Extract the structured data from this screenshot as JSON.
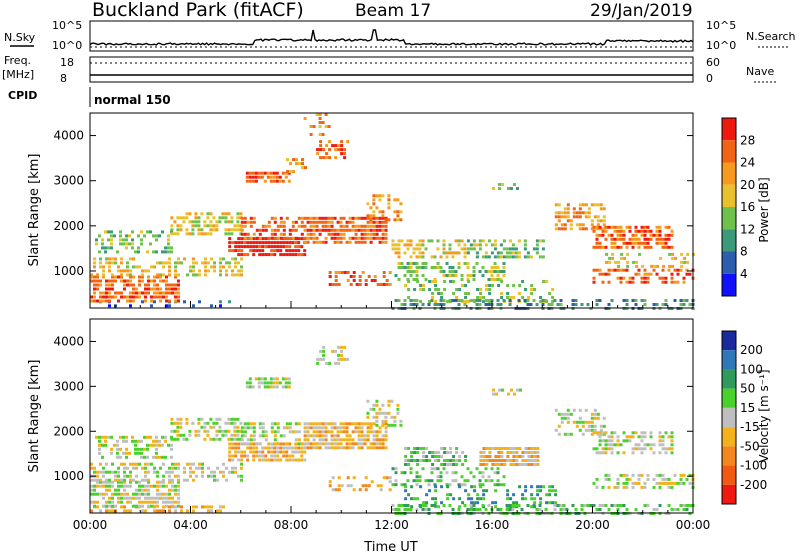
{
  "header": {
    "site": "Buckland Park (fitACF)",
    "beam": "Beam 17",
    "date": "29/Jan/2019"
  },
  "strips": {
    "nsky_label": "N.Sky",
    "nsky_ticks": [
      "10^5",
      "10^0"
    ],
    "nsearch_label": "N.Search",
    "nsearch_ticks": [
      "10^5",
      "10^0"
    ],
    "freq_label": "Freq.",
    "freq_unit": "[MHz]",
    "freq_ticks": [
      "18",
      "8"
    ],
    "nave_label": "Nave",
    "nave_ticks": [
      "60",
      "0"
    ],
    "cpid_label": "CPID",
    "cpid_value": "normal 150"
  },
  "chart_data": [
    {
      "type": "heatmap",
      "panel": "power",
      "ylabel": "Slant Range [km]",
      "xlabel": "",
      "xlim": [
        0,
        24
      ],
      "ylim": [
        180,
        4500
      ],
      "yticks": [
        "1000",
        "2000",
        "3000",
        "4000"
      ],
      "colorbar_label": "Power [dB]",
      "colorbar_ticks": [
        "4",
        "8",
        "12",
        "16",
        "20",
        "24",
        "28"
      ],
      "colorbar_range": [
        0,
        32
      ],
      "colors": [
        "#1010ff",
        "#2b5fae",
        "#3c9a7a",
        "#6ec14d",
        "#e8c12c",
        "#f59a1e",
        "#f26414",
        "#ee1a10"
      ],
      "regions": [
        {
          "t0": 0.0,
          "t1": 5.5,
          "r0": 180,
          "r1": 350,
          "lvl": 1,
          "dens": 0.25
        },
        {
          "t0": 0.0,
          "t1": 3.5,
          "r0": 350,
          "r1": 900,
          "lvl": 6,
          "dens": 0.7
        },
        {
          "t0": 0.0,
          "t1": 6.0,
          "r0": 900,
          "r1": 1300,
          "lvl": 4,
          "dens": 0.45
        },
        {
          "t0": 0.2,
          "t1": 3.2,
          "r0": 1400,
          "r1": 1900,
          "lvl": 3,
          "dens": 0.45
        },
        {
          "t0": 3.2,
          "t1": 6.0,
          "r0": 1800,
          "r1": 2300,
          "lvl": 4,
          "dens": 0.55
        },
        {
          "t0": 5.5,
          "t1": 8.5,
          "r0": 1350,
          "r1": 1750,
          "lvl": 7,
          "dens": 0.85
        },
        {
          "t0": 6.0,
          "t1": 8.5,
          "r0": 1700,
          "r1": 2200,
          "lvl": 6,
          "dens": 0.55
        },
        {
          "t0": 8.5,
          "t1": 11.8,
          "r0": 1600,
          "r1": 2200,
          "lvl": 6,
          "dens": 0.8
        },
        {
          "t0": 6.2,
          "t1": 7.9,
          "r0": 2950,
          "r1": 3200,
          "lvl": 6,
          "dens": 0.8
        },
        {
          "t0": 7.8,
          "t1": 8.6,
          "r0": 3150,
          "r1": 3500,
          "lvl": 5,
          "dens": 0.5
        },
        {
          "t0": 9.0,
          "t1": 10.2,
          "r0": 3500,
          "r1": 3900,
          "lvl": 6,
          "dens": 0.5
        },
        {
          "t0": 8.5,
          "t1": 9.5,
          "r0": 4000,
          "r1": 4500,
          "lvl": 5,
          "dens": 0.3
        },
        {
          "t0": 11.0,
          "t1": 12.4,
          "r0": 2100,
          "r1": 2700,
          "lvl": 5,
          "dens": 0.45
        },
        {
          "t0": 9.5,
          "t1": 12.0,
          "r0": 700,
          "r1": 1000,
          "lvl": 6,
          "dens": 0.45
        },
        {
          "t0": 12.0,
          "t1": 15.0,
          "r0": 1300,
          "r1": 1700,
          "lvl": 4,
          "dens": 0.55
        },
        {
          "t0": 12.0,
          "t1": 16.5,
          "r0": 800,
          "r1": 1200,
          "lvl": 3,
          "dens": 0.45
        },
        {
          "t0": 15.0,
          "t1": 18.0,
          "r0": 1300,
          "r1": 1700,
          "lvl": 3,
          "dens": 0.55
        },
        {
          "t0": 12.5,
          "t1": 18.5,
          "r0": 350,
          "r1": 800,
          "lvl": 3,
          "dens": 0.3
        },
        {
          "t0": 12.0,
          "t1": 24.0,
          "r0": 180,
          "r1": 380,
          "lvl": 2,
          "dens": 0.4
        },
        {
          "t0": 18.5,
          "t1": 20.5,
          "r0": 1900,
          "r1": 2500,
          "lvl": 5,
          "dens": 0.55
        },
        {
          "t0": 20.0,
          "t1": 23.2,
          "r0": 1500,
          "r1": 2000,
          "lvl": 6,
          "dens": 0.65
        },
        {
          "t0": 20.0,
          "t1": 24.0,
          "r0": 700,
          "r1": 1050,
          "lvl": 6,
          "dens": 0.5
        },
        {
          "t0": 20.5,
          "t1": 24.0,
          "r0": 1050,
          "r1": 1400,
          "lvl": 4,
          "dens": 0.35
        },
        {
          "t0": 16.0,
          "t1": 17.2,
          "r0": 2800,
          "r1": 2950,
          "lvl": 3,
          "dens": 0.35
        }
      ]
    },
    {
      "type": "heatmap",
      "panel": "velocity",
      "ylabel": "Slant Range [km]",
      "xlabel": "Time UT",
      "xlim": [
        0,
        24
      ],
      "ylim": [
        180,
        4500
      ],
      "xticks": [
        "00:00",
        "04:00",
        "08:00",
        "12:00",
        "16:00",
        "20:00",
        "00:00"
      ],
      "yticks": [
        "1000",
        "2000",
        "3000",
        "4000"
      ],
      "colorbar_label": "Velocity [m s⁻¹]",
      "colorbar_ticks": [
        "200",
        "100",
        "50",
        "15",
        "-15",
        "-50",
        "-100",
        "-200"
      ],
      "colors": [
        "#1a2a9e",
        "#2f78b8",
        "#2f9a5c",
        "#4bd12b",
        "#bfbfbf",
        "#f3b21a",
        "#f3861c",
        "#f25a14",
        "#ee1a10"
      ],
      "regions": [
        {
          "t0": 0.0,
          "t1": 5.5,
          "r0": 180,
          "r1": 350,
          "lvl": 5,
          "dens": 0.45
        },
        {
          "t0": 0.0,
          "t1": 3.5,
          "r0": 350,
          "r1": 900,
          "lvl": 4,
          "dens": 0.7
        },
        {
          "t0": 0.0,
          "t1": 6.0,
          "r0": 900,
          "r1": 1300,
          "lvl": 4,
          "dens": 0.5
        },
        {
          "t0": 0.2,
          "t1": 3.2,
          "r0": 1400,
          "r1": 1900,
          "lvl": 4,
          "dens": 0.45
        },
        {
          "t0": 3.2,
          "t1": 6.0,
          "r0": 1800,
          "r1": 2300,
          "lvl": 4,
          "dens": 0.55
        },
        {
          "t0": 5.5,
          "t1": 8.5,
          "r0": 1350,
          "r1": 1750,
          "lvl": 5,
          "dens": 0.8
        },
        {
          "t0": 6.0,
          "t1": 8.5,
          "r0": 1700,
          "r1": 2200,
          "lvl": 4,
          "dens": 0.5
        },
        {
          "t0": 8.5,
          "t1": 11.8,
          "r0": 1600,
          "r1": 2200,
          "lvl": 5,
          "dens": 0.8
        },
        {
          "t0": 6.2,
          "t1": 7.9,
          "r0": 2950,
          "r1": 3200,
          "lvl": 4,
          "dens": 0.7
        },
        {
          "t0": 9.0,
          "t1": 10.2,
          "r0": 3500,
          "r1": 3900,
          "lvl": 4,
          "dens": 0.45
        },
        {
          "t0": 11.0,
          "t1": 12.4,
          "r0": 2100,
          "r1": 2700,
          "lvl": 4,
          "dens": 0.45
        },
        {
          "t0": 9.5,
          "t1": 12.0,
          "r0": 700,
          "r1": 1000,
          "lvl": 5,
          "dens": 0.45
        },
        {
          "t0": 12.5,
          "t1": 15.0,
          "r0": 1250,
          "r1": 1650,
          "lvl": 3,
          "dens": 0.65
        },
        {
          "t0": 15.5,
          "t1": 17.8,
          "r0": 1250,
          "r1": 1650,
          "lvl": 5,
          "dens": 0.85
        },
        {
          "t0": 12.0,
          "t1": 16.5,
          "r0": 800,
          "r1": 1200,
          "lvl": 3,
          "dens": 0.45
        },
        {
          "t0": 12.5,
          "t1": 18.5,
          "r0": 350,
          "r1": 800,
          "lvl": 2,
          "dens": 0.3
        },
        {
          "t0": 12.0,
          "t1": 24.0,
          "r0": 180,
          "r1": 380,
          "lvl": 3,
          "dens": 0.5
        },
        {
          "t0": 18.5,
          "t1": 20.5,
          "r0": 1900,
          "r1": 2500,
          "lvl": 4,
          "dens": 0.5
        },
        {
          "t0": 20.0,
          "t1": 23.2,
          "r0": 1500,
          "r1": 2000,
          "lvl": 4,
          "dens": 0.6
        },
        {
          "t0": 20.0,
          "t1": 24.0,
          "r0": 700,
          "r1": 1050,
          "lvl": 4,
          "dens": 0.5
        },
        {
          "t0": 16.0,
          "t1": 17.2,
          "r0": 2800,
          "r1": 2950,
          "lvl": 4,
          "dens": 0.3
        }
      ]
    }
  ]
}
